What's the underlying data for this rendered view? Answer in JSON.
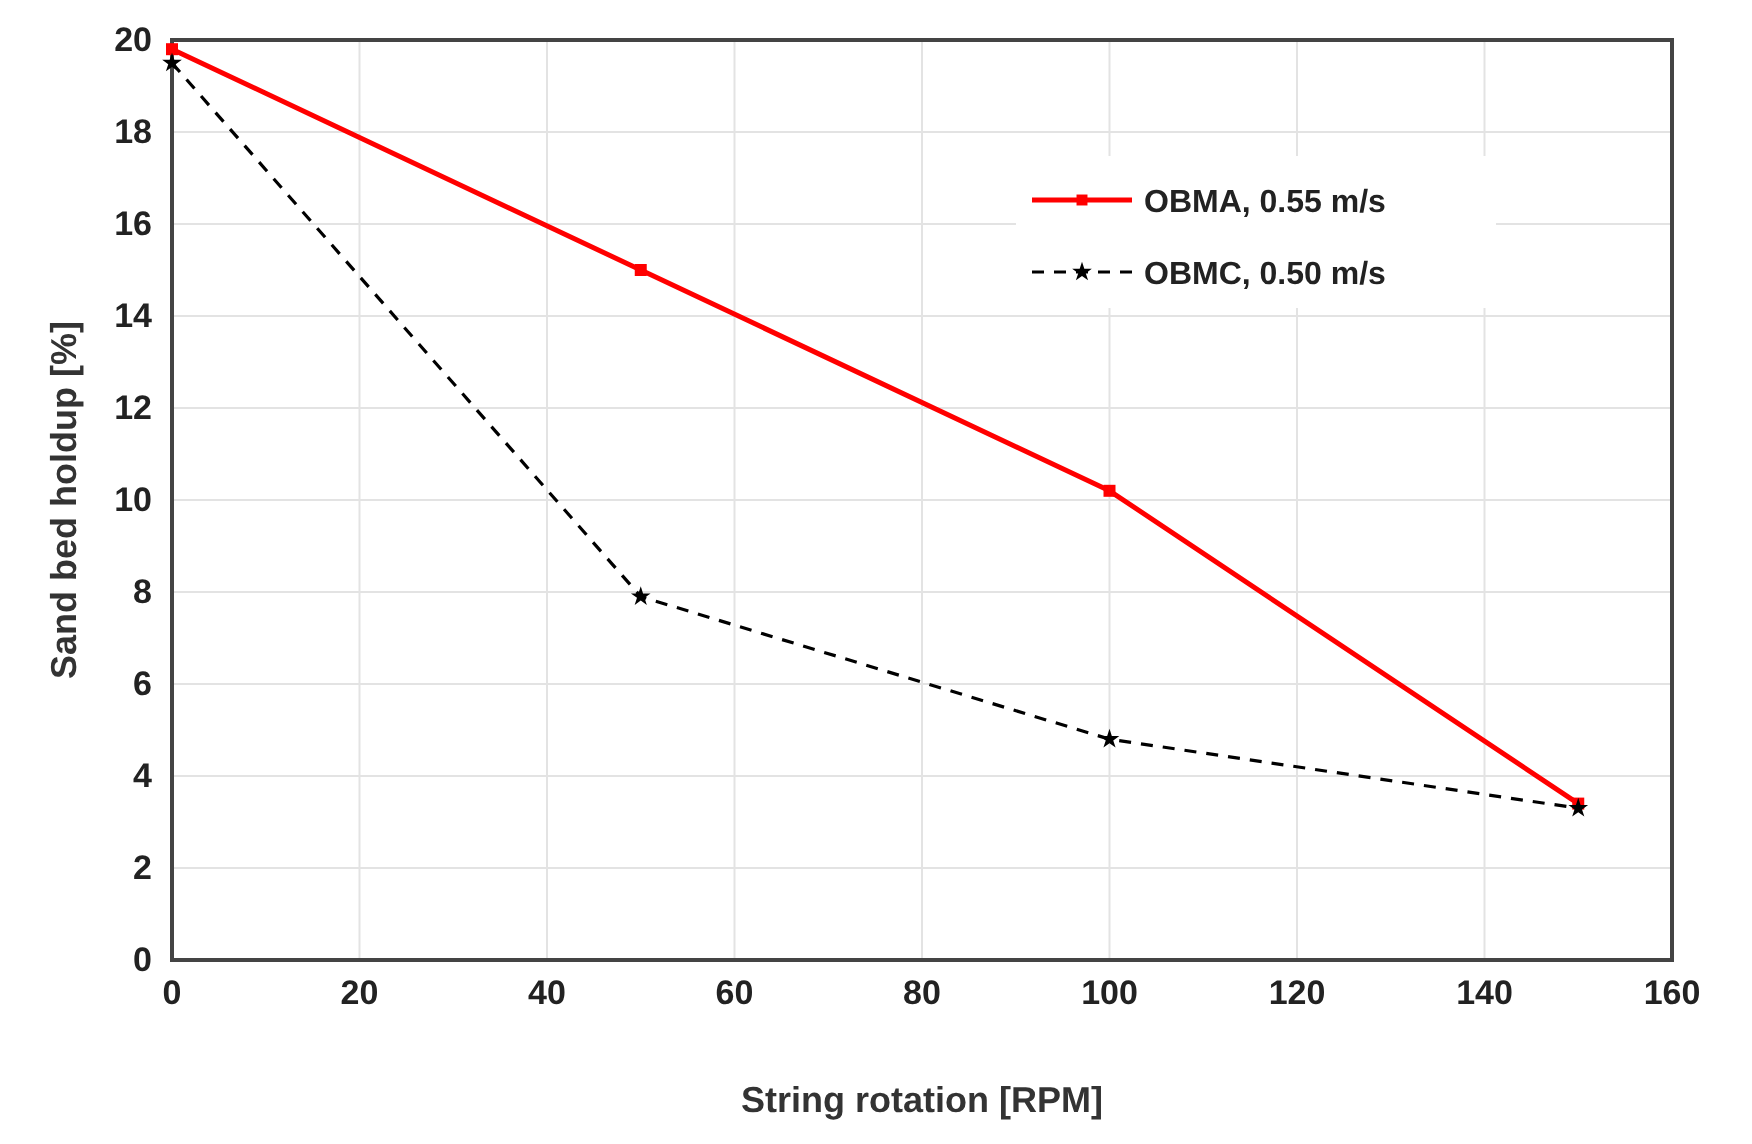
{
  "chart_data": {
    "type": "line",
    "xlabel": "String rotation [RPM]",
    "ylabel": "Sand bed holdup [%]",
    "x": [
      0,
      50,
      100,
      150
    ],
    "xlim": [
      0,
      160
    ],
    "xticks": [
      0,
      20,
      40,
      60,
      80,
      100,
      120,
      140,
      160
    ],
    "ylim": [
      0,
      20
    ],
    "yticks": [
      0,
      2,
      4,
      6,
      8,
      10,
      12,
      14,
      16,
      18,
      20
    ],
    "grid": true,
    "legend": "top right",
    "series": [
      {
        "name": "OBMA, 0.55 m/s",
        "color": "#ff0000",
        "values": [
          19.8,
          15.0,
          10.2,
          3.4
        ],
        "marker": "square",
        "line_style": "solid"
      },
      {
        "name": "OBMC, 0.50 m/s",
        "color": "#000000",
        "values": [
          19.5,
          7.9,
          4.8,
          3.3
        ],
        "marker": "star",
        "line_style": "dashed"
      }
    ]
  }
}
